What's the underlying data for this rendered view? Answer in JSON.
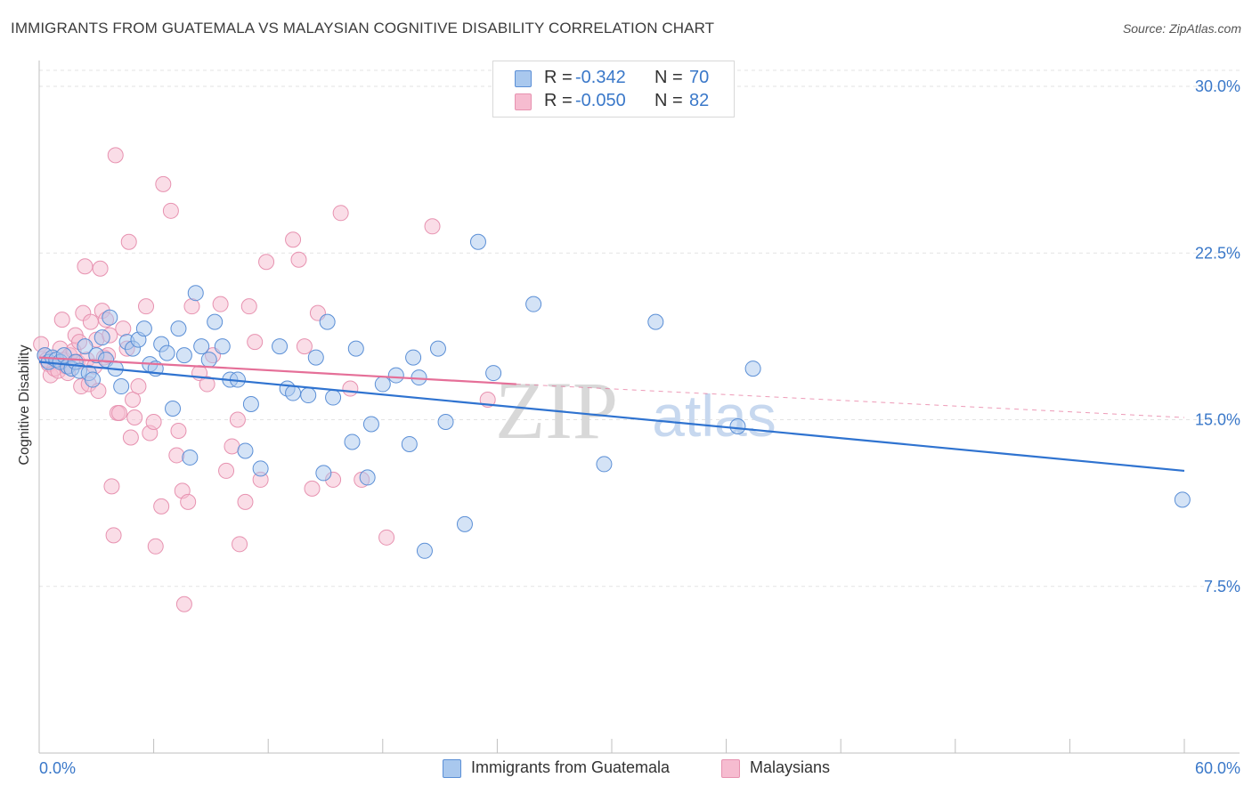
{
  "title": "IMMIGRANTS FROM GUATEMALA VS MALAYSIAN COGNITIVE DISABILITY CORRELATION CHART",
  "source": "Source: ZipAtlas.com",
  "watermark": {
    "zip": "ZIP",
    "atlas": "atlas"
  },
  "legend": {
    "rows": [
      {
        "r_label": "R =",
        "r_value": "-0.342",
        "n_label": "N =",
        "n_value": "70",
        "color": "#a9c8ee"
      },
      {
        "r_label": "R =",
        "r_value": "-0.050",
        "n_label": "N =",
        "n_value": "82",
        "color": "#f6bcd0"
      }
    ]
  },
  "bottom_legend": {
    "series1": "Immigrants from Guatemala",
    "series2": "Malaysians"
  },
  "colors": {
    "blue_fill": "#a9c8ee",
    "blue_stroke": "#5b8fd6",
    "blue_line": "#2f73d0",
    "pink_fill": "#f6bcd0",
    "pink_stroke": "#e792b0",
    "pink_line": "#e56f98",
    "grid": "#e3e3e3",
    "tick_text": "#3a78c9"
  },
  "chart_data": {
    "type": "scatter",
    "title": "IMMIGRANTS FROM GUATEMALA VS MALAYSIAN COGNITIVE DISABILITY CORRELATION CHART",
    "xlabel": "",
    "ylabel": "Cognitive Disability",
    "xlim": [
      0,
      60
    ],
    "ylim": [
      0,
      31.5
    ],
    "x_tick_labels": [
      "0.0%",
      "60.0%"
    ],
    "y_ticks": [
      7.5,
      15.0,
      22.5,
      30.0
    ],
    "y_tick_labels": [
      "7.5%",
      "15.0%",
      "22.5%",
      "30.0%"
    ],
    "grid": "horizontal dashed",
    "legend_position": "top-center",
    "series": [
      {
        "name": "Immigrants from Guatemala",
        "R": -0.342,
        "N": 70,
        "trend": {
          "x": [
            0,
            60
          ],
          "y": [
            17.6,
            12.7
          ]
        },
        "points": [
          [
            0.3,
            17.9
          ],
          [
            0.5,
            17.6
          ],
          [
            0.7,
            17.8
          ],
          [
            0.9,
            17.7
          ],
          [
            1.1,
            17.6
          ],
          [
            1.3,
            17.9
          ],
          [
            1.5,
            17.4
          ],
          [
            1.7,
            17.3
          ],
          [
            1.9,
            17.6
          ],
          [
            2.1,
            17.2
          ],
          [
            2.4,
            18.3
          ],
          [
            2.6,
            17.1
          ],
          [
            2.8,
            16.8
          ],
          [
            3.0,
            17.9
          ],
          [
            3.3,
            18.7
          ],
          [
            3.5,
            17.7
          ],
          [
            3.7,
            19.6
          ],
          [
            4.0,
            17.3
          ],
          [
            4.3,
            16.5
          ],
          [
            4.6,
            18.5
          ],
          [
            4.9,
            18.2
          ],
          [
            5.2,
            18.6
          ],
          [
            5.5,
            19.1
          ],
          [
            5.8,
            17.5
          ],
          [
            6.1,
            17.3
          ],
          [
            6.4,
            18.4
          ],
          [
            6.7,
            18.0
          ],
          [
            7.0,
            15.5
          ],
          [
            7.3,
            19.1
          ],
          [
            7.6,
            17.9
          ],
          [
            7.9,
            13.3
          ],
          [
            8.2,
            20.7
          ],
          [
            8.5,
            18.3
          ],
          [
            8.9,
            17.7
          ],
          [
            9.2,
            19.4
          ],
          [
            9.6,
            18.3
          ],
          [
            10.0,
            16.8
          ],
          [
            10.4,
            16.8
          ],
          [
            10.8,
            13.6
          ],
          [
            11.1,
            15.7
          ],
          [
            11.6,
            12.8
          ],
          [
            12.6,
            18.3
          ],
          [
            13.0,
            16.4
          ],
          [
            13.3,
            16.2
          ],
          [
            14.1,
            16.1
          ],
          [
            14.5,
            17.8
          ],
          [
            14.9,
            12.6
          ],
          [
            15.1,
            19.4
          ],
          [
            15.4,
            16.0
          ],
          [
            16.4,
            14.0
          ],
          [
            16.6,
            18.2
          ],
          [
            17.2,
            12.4
          ],
          [
            17.4,
            14.8
          ],
          [
            18.0,
            16.6
          ],
          [
            18.7,
            17.0
          ],
          [
            19.4,
            13.9
          ],
          [
            19.6,
            17.8
          ],
          [
            19.9,
            16.9
          ],
          [
            20.2,
            9.1
          ],
          [
            20.9,
            18.2
          ],
          [
            21.3,
            14.9
          ],
          [
            22.3,
            10.3
          ],
          [
            23.0,
            23.0
          ],
          [
            23.8,
            17.1
          ],
          [
            25.9,
            20.2
          ],
          [
            29.6,
            13.0
          ],
          [
            32.3,
            19.4
          ],
          [
            36.6,
            14.7
          ],
          [
            37.4,
            17.3
          ],
          [
            59.9,
            11.4
          ]
        ]
      },
      {
        "name": "Malaysians",
        "R": -0.05,
        "N": 82,
        "trend": {
          "x": [
            0,
            25
          ],
          "y": [
            17.8,
            16.6
          ]
        },
        "trend_dashed": {
          "x": [
            25,
            60
          ],
          "y": [
            16.6,
            15.1
          ]
        },
        "points": [
          [
            0.1,
            18.4
          ],
          [
            0.3,
            17.9
          ],
          [
            0.5,
            17.5
          ],
          [
            0.6,
            17.0
          ],
          [
            0.8,
            17.3
          ],
          [
            1.0,
            17.2
          ],
          [
            1.1,
            18.2
          ],
          [
            1.2,
            19.5
          ],
          [
            1.3,
            17.7
          ],
          [
            1.4,
            17.4
          ],
          [
            1.6,
            17.9
          ],
          [
            1.8,
            18.1
          ],
          [
            1.9,
            18.8
          ],
          [
            2.0,
            17.6
          ],
          [
            2.1,
            18.5
          ],
          [
            2.2,
            16.5
          ],
          [
            2.3,
            19.8
          ],
          [
            2.4,
            21.9
          ],
          [
            2.5,
            17.7
          ],
          [
            2.6,
            16.6
          ],
          [
            2.7,
            19.4
          ],
          [
            2.9,
            17.4
          ],
          [
            3.0,
            18.6
          ],
          [
            3.1,
            16.3
          ],
          [
            3.2,
            21.8
          ],
          [
            3.3,
            19.9
          ],
          [
            3.4,
            17.8
          ],
          [
            3.5,
            19.5
          ],
          [
            3.6,
            17.9
          ],
          [
            3.7,
            18.8
          ],
          [
            3.8,
            12.0
          ],
          [
            3.9,
            9.8
          ],
          [
            4.0,
            26.9
          ],
          [
            4.1,
            15.3
          ],
          [
            4.2,
            15.3
          ],
          [
            4.4,
            19.1
          ],
          [
            4.6,
            18.2
          ],
          [
            4.7,
            23.0
          ],
          [
            4.8,
            14.2
          ],
          [
            4.9,
            15.9
          ],
          [
            5.0,
            15.1
          ],
          [
            5.2,
            16.5
          ],
          [
            5.6,
            20.1
          ],
          [
            5.8,
            14.4
          ],
          [
            6.0,
            14.9
          ],
          [
            6.1,
            9.3
          ],
          [
            6.4,
            11.1
          ],
          [
            6.5,
            25.6
          ],
          [
            6.9,
            24.4
          ],
          [
            7.2,
            13.4
          ],
          [
            7.3,
            14.5
          ],
          [
            7.5,
            11.8
          ],
          [
            7.6,
            6.7
          ],
          [
            7.8,
            11.3
          ],
          [
            8.0,
            20.1
          ],
          [
            8.4,
            17.1
          ],
          [
            8.8,
            16.6
          ],
          [
            9.1,
            17.9
          ],
          [
            9.5,
            20.2
          ],
          [
            9.8,
            12.7
          ],
          [
            10.1,
            13.8
          ],
          [
            10.4,
            15.0
          ],
          [
            10.5,
            9.4
          ],
          [
            10.8,
            11.3
          ],
          [
            11.0,
            20.1
          ],
          [
            11.3,
            18.5
          ],
          [
            11.6,
            12.3
          ],
          [
            11.9,
            22.1
          ],
          [
            13.3,
            23.1
          ],
          [
            13.6,
            22.2
          ],
          [
            13.9,
            18.3
          ],
          [
            14.3,
            11.9
          ],
          [
            14.6,
            19.8
          ],
          [
            15.4,
            12.3
          ],
          [
            15.8,
            24.3
          ],
          [
            16.3,
            16.4
          ],
          [
            16.9,
            12.3
          ],
          [
            18.2,
            9.7
          ],
          [
            20.6,
            23.7
          ],
          [
            23.5,
            15.9
          ],
          [
            0.4,
            17.7
          ],
          [
            1.5,
            17.1
          ]
        ]
      }
    ]
  }
}
